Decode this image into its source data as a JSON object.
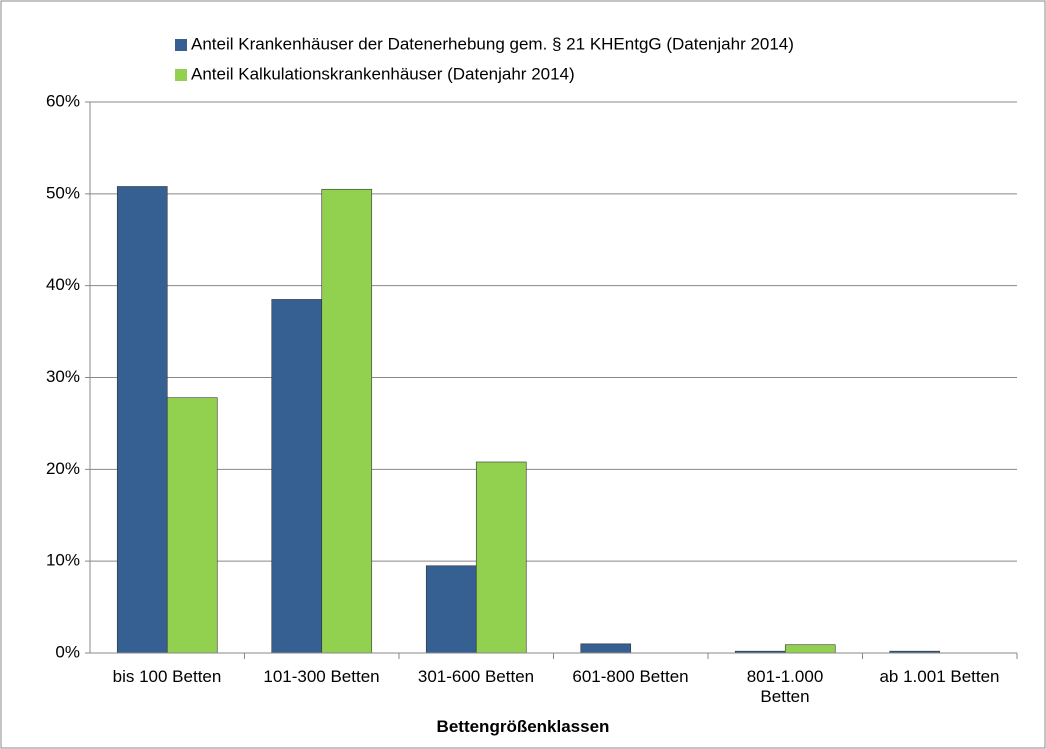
{
  "chart_data": {
    "type": "bar",
    "x_label": "Bettengrößenklassen",
    "categories": [
      "bis 100 Betten",
      "101-300 Betten",
      "301-600 Betten",
      "601-800 Betten",
      "801-1.000\nBetten",
      "ab 1.001 Betten"
    ],
    "series": [
      {
        "name": "Anteil Krankenhäuser der Datenerhebung gem. § 21 KHEntgG (Datenjahr 2014)",
        "color": "#376092",
        "values": [
          50.8,
          38.5,
          9.5,
          1.0,
          0.2,
          0.2
        ]
      },
      {
        "name": "Anteil Kalkulationskrankenhäuser (Datenjahr 2014)",
        "color": "#92d050",
        "values": [
          27.8,
          50.5,
          20.8,
          0,
          0.9,
          0
        ]
      }
    ],
    "ylim": [
      0,
      60
    ],
    "yticks": [
      {
        "value": 0,
        "label": "0%"
      },
      {
        "value": 10,
        "label": "10%"
      },
      {
        "value": 20,
        "label": "20%"
      },
      {
        "value": 30,
        "label": "30%"
      },
      {
        "value": 40,
        "label": "40%"
      },
      {
        "value": 50,
        "label": "50%"
      },
      {
        "value": 60,
        "label": "60%"
      }
    ],
    "grid": true,
    "legend": "top"
  }
}
